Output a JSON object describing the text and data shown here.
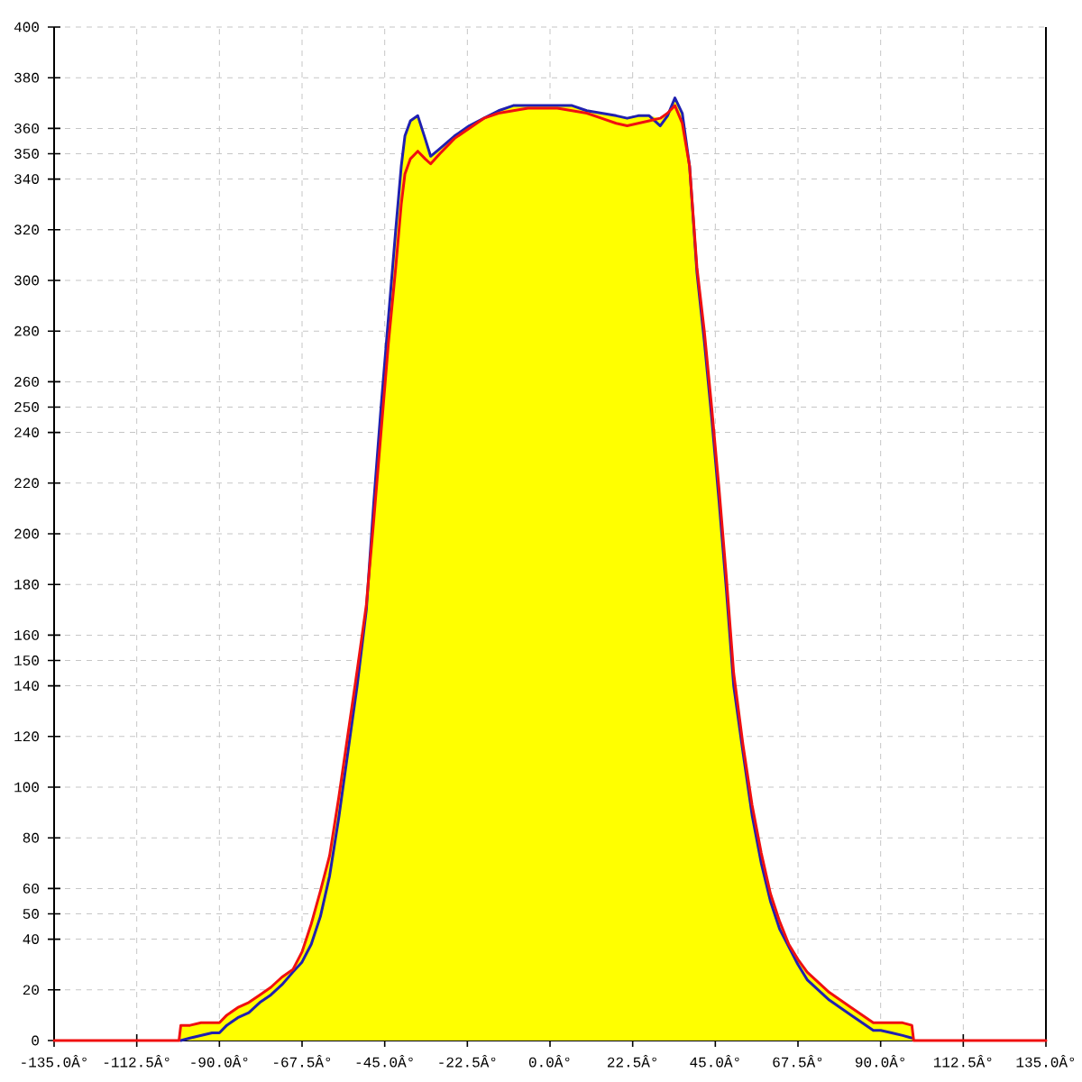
{
  "chart_data": {
    "type": "line",
    "x": [
      -135,
      -101,
      -100.5,
      -98,
      -95,
      -92,
      -90,
      -88,
      -85,
      -82,
      -79,
      -76,
      -73,
      -70,
      -67.5,
      -65,
      -62.5,
      -60,
      -57.5,
      -55,
      -52.5,
      -50,
      -48,
      -46,
      -44,
      -42,
      -40.5,
      -39.5,
      -38,
      -36,
      -34,
      -32.5,
      -30,
      -26,
      -22,
      -18,
      -14,
      -10,
      -6,
      -2,
      2,
      6,
      10,
      14,
      18,
      21,
      24,
      27,
      30,
      32,
      34,
      36,
      38,
      40,
      42,
      44,
      46,
      48,
      50,
      52.5,
      55,
      57.5,
      60,
      62.5,
      65,
      67.5,
      70,
      73,
      76,
      79,
      82,
      85,
      88,
      90,
      93,
      96,
      98.5,
      99,
      135
    ],
    "xlim": [
      -135,
      135
    ],
    "ylim": [
      0,
      400
    ],
    "xticks": [
      {
        "value": -135,
        "label": "-135.0Â°"
      },
      {
        "value": -112.5,
        "label": "-112.5Â°"
      },
      {
        "value": -90,
        "label": "-90.0Â°"
      },
      {
        "value": -67.5,
        "label": "-67.5Â°"
      },
      {
        "value": -45,
        "label": "-45.0Â°"
      },
      {
        "value": -22.5,
        "label": "-22.5Â°"
      },
      {
        "value": 0,
        "label": "0.0Â°"
      },
      {
        "value": 22.5,
        "label": "22.5Â°"
      },
      {
        "value": 45,
        "label": "45.0Â°"
      },
      {
        "value": 67.5,
        "label": "67.5Â°"
      },
      {
        "value": 90,
        "label": "90.0Â°"
      },
      {
        "value": 112.5,
        "label": "112.5Â°"
      },
      {
        "value": 135,
        "label": "135.0Â°"
      }
    ],
    "yticks": [
      0,
      20,
      40,
      50,
      60,
      80,
      100,
      120,
      140,
      150,
      160,
      180,
      200,
      220,
      240,
      250,
      260,
      280,
      300,
      320,
      340,
      350,
      360,
      380,
      400
    ],
    "grid": true,
    "line_style": "solid",
    "series": [
      {
        "type": "area",
        "color": "#ffff00",
        "values": [
          0,
          0,
          6,
          6,
          7,
          7,
          7,
          10,
          13,
          15,
          18,
          21,
          25,
          28,
          35,
          46,
          59,
          73,
          96,
          121,
          146,
          172,
          212,
          250,
          285,
          320,
          345,
          357,
          363,
          365,
          356,
          349,
          352,
          357,
          361,
          364,
          367,
          369,
          369,
          369,
          369,
          369,
          367,
          366,
          365,
          364,
          365,
          365,
          364,
          366,
          372,
          366,
          345,
          305,
          280,
          250,
          218,
          183,
          145,
          117,
          93,
          74,
          58,
          47,
          38,
          32,
          27,
          23,
          19,
          16,
          13,
          10,
          7,
          7,
          7,
          7,
          6,
          0,
          0
        ]
      },
      {
        "color": "#2020b0",
        "values": [
          null,
          null,
          0,
          1,
          2,
          3,
          3,
          6,
          9,
          11,
          15,
          18,
          22,
          27,
          31,
          38,
          49,
          65,
          88,
          114,
          140,
          170,
          212,
          250,
          285,
          320,
          345,
          357,
          363,
          365,
          356,
          349,
          352,
          357,
          361,
          364,
          367,
          369,
          369,
          369,
          369,
          369,
          367,
          366,
          365,
          364,
          365,
          365,
          361,
          365,
          372,
          366,
          345,
          303,
          276,
          246,
          213,
          178,
          140,
          114,
          89,
          70,
          55,
          44,
          37,
          30,
          24,
          20,
          16,
          13,
          10,
          7,
          4,
          4,
          3,
          2,
          1,
          null,
          null
        ]
      },
      {
        "color": "#f01010",
        "values": [
          0,
          0,
          6,
          6,
          7,
          7,
          7,
          10,
          13,
          15,
          18,
          21,
          25,
          28,
          35,
          46,
          59,
          73,
          96,
          121,
          146,
          172,
          205,
          240,
          275,
          305,
          330,
          342,
          348,
          351,
          348,
          346,
          350,
          356,
          360,
          364,
          366,
          367,
          368,
          368,
          368,
          367,
          366,
          364,
          362,
          361,
          362,
          363,
          364,
          366,
          369,
          362,
          345,
          305,
          280,
          250,
          218,
          183,
          145,
          117,
          93,
          74,
          58,
          47,
          38,
          32,
          27,
          23,
          19,
          16,
          13,
          10,
          7,
          7,
          7,
          7,
          6,
          0,
          0
        ]
      }
    ]
  }
}
